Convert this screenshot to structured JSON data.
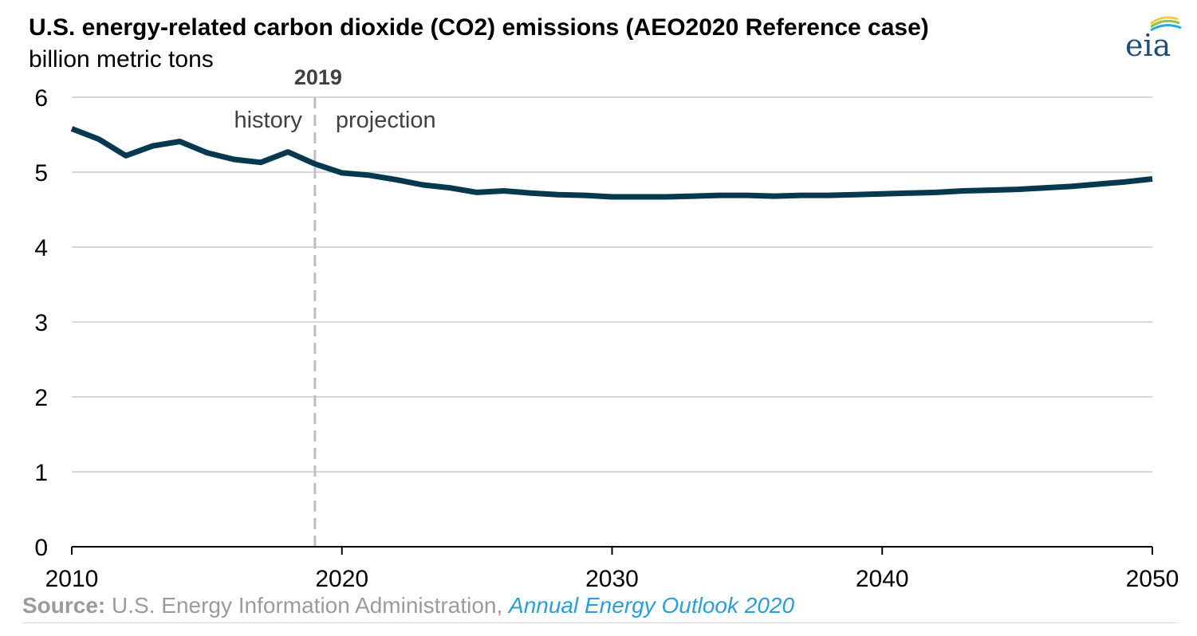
{
  "chart_data": {
    "type": "line",
    "title": "U.S. energy-related carbon dioxide (CO2) emissions (AEO2020 Reference case)",
    "subtitle": "billion metric tons",
    "xlim": [
      2010,
      2050
    ],
    "ylim": [
      0,
      6
    ],
    "x_ticks": [
      "2010",
      "2020",
      "2030",
      "2040",
      "2050"
    ],
    "y_ticks": [
      "0",
      "1",
      "2",
      "3",
      "4",
      "5",
      "6"
    ],
    "grid": true,
    "divider": {
      "year": 2019,
      "label": "2019",
      "left_label": "history",
      "right_label": "projection"
    },
    "series": [
      {
        "x": [
          2010,
          2011,
          2012,
          2013,
          2014,
          2015,
          2016,
          2017,
          2018,
          2019,
          2020,
          2021,
          2022,
          2023,
          2024,
          2025,
          2026,
          2027,
          2028,
          2029,
          2030,
          2031,
          2032,
          2033,
          2034,
          2035,
          2036,
          2037,
          2038,
          2039,
          2040,
          2041,
          2042,
          2043,
          2044,
          2045,
          2046,
          2047,
          2048,
          2049,
          2050
        ],
        "values": [
          5.58,
          5.44,
          5.22,
          5.35,
          5.41,
          5.26,
          5.17,
          5.13,
          5.27,
          5.11,
          4.99,
          4.96,
          4.9,
          4.83,
          4.79,
          4.73,
          4.75,
          4.72,
          4.7,
          4.69,
          4.67,
          4.67,
          4.67,
          4.68,
          4.69,
          4.69,
          4.68,
          4.69,
          4.69,
          4.7,
          4.71,
          4.72,
          4.73,
          4.75,
          4.76,
          4.77,
          4.79,
          4.81,
          4.84,
          4.87,
          4.91
        ]
      }
    ]
  },
  "source": {
    "label": "Source:",
    "text": " U.S. Energy Information Administration, ",
    "link": "Annual Energy Outlook 2020"
  },
  "logo": {
    "text": "eia"
  },
  "colors": {
    "line": "#063950",
    "grid": "#d9d9d9",
    "divider": "#bfbfbf",
    "axis": "#000000",
    "link": "#2a9fd6"
  }
}
